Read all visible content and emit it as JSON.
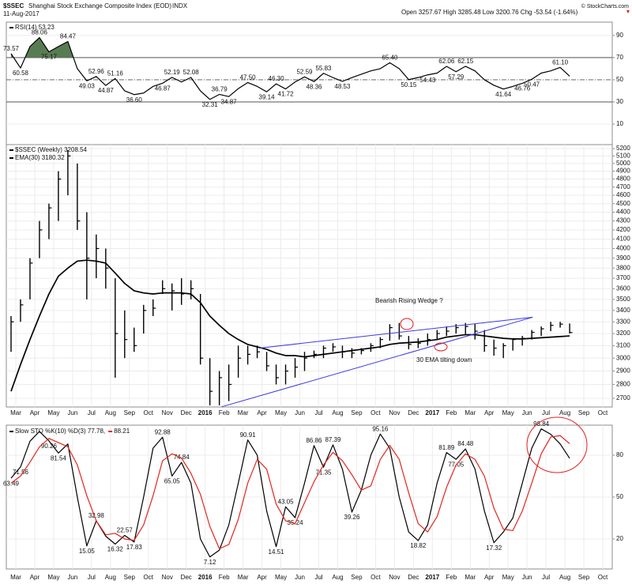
{
  "header": {
    "symbol": "$SSEC",
    "name": "Shanghai Stock Exchange Composite Index (EOD)",
    "exchange": "INDX",
    "date": "11-Aug-2017",
    "quote": "Open 3257.67  High 3285.48  Low 3200.76  Chg -53.54 (-1.64%)",
    "credit": "© StockCharts.com"
  },
  "chart_data": [
    {
      "type": "line",
      "legend": "stacked",
      "series": [
        {
          "name": "RSI(14) 53.23",
          "color": "#000000",
          "fill": "#587c52",
          "values": [
            73.57,
            60.58,
            80,
            88.06,
            75.17,
            80,
            84.47,
            60,
            49.03,
            52.96,
            44.87,
            51.16,
            40,
            36.6,
            38,
            44,
            46.87,
            52.19,
            48,
            52.08,
            40,
            32.31,
            36.79,
            34.87,
            42,
            47.5,
            44,
            39.14,
            46.3,
            41.72,
            48,
            52.59,
            48.36,
            55.83,
            52,
            48.53,
            52,
            55,
            58,
            60,
            65.4,
            60,
            50.15,
            52,
            54.43,
            56,
            62.06,
            57.29,
            62.15,
            58,
            50,
            45,
            41.64,
            44,
            46.76,
            50.47,
            56,
            58,
            61.1,
            53.23,
            null,
            null,
            null,
            null
          ],
          "value_labels": [
            "73.57",
            "60.58",
            null,
            "88.06",
            "75.17",
            null,
            "84.47",
            null,
            "49.03",
            "52.96",
            "44.87",
            "51.16",
            null,
            "36.60",
            null,
            null,
            "46.87",
            "52.19",
            null,
            "52.08",
            null,
            "32.31",
            "36.79",
            "34.87",
            null,
            "47.50",
            null,
            "39.14",
            "46.30",
            "41.72",
            null,
            "52.59",
            "48.36",
            "55.83",
            null,
            "48.53",
            null,
            null,
            null,
            null,
            "65.40",
            null,
            "50.15",
            null,
            "54.43",
            null,
            "62.06",
            "57.29",
            "62.15",
            null,
            null,
            null,
            "41.64",
            null,
            "46.76",
            "50.47",
            null,
            null,
            "61.10",
            null,
            null,
            null,
            null,
            null
          ]
        }
      ],
      "fill_above": 70,
      "ylim": [
        -8.5,
        102
      ],
      "yticks": [
        10,
        30,
        50,
        70,
        90
      ],
      "reference_lines": [
        70,
        50,
        30
      ],
      "reference_styles": [
        "solid",
        "dashdot",
        "solid"
      ]
    },
    {
      "type": "ohlc",
      "log_scale": true,
      "grid": true,
      "legend": "stacked",
      "categories": [
        "Mar",
        null,
        "Apr",
        null,
        "May",
        null,
        "Jun",
        null,
        "Jul",
        null,
        "Aug",
        null,
        "Sep",
        null,
        "Oct",
        null,
        "Nov",
        null,
        "Dec",
        null,
        "2016",
        null,
        "Feb",
        null,
        "Mar",
        null,
        "Apr",
        null,
        "May",
        null,
        "Jun",
        null,
        "Jul",
        null,
        "Aug",
        null,
        "Sep",
        null,
        "Oct",
        null,
        "Nov",
        null,
        "Dec",
        null,
        "2017",
        null,
        "Feb",
        null,
        "Mar",
        null,
        "Apr",
        null,
        "May",
        null,
        "Jun",
        null,
        "Jul",
        null,
        "Aug",
        null,
        "Sep",
        null,
        "Oct",
        null
      ],
      "series": [
        {
          "name": "$SSEC (Weekly) 3208.54",
          "color": "#000000",
          "low": [
            3050,
            3300,
            3500,
            3900,
            4100,
            4300,
            4600,
            4200,
            3500,
            3700,
            3600,
            2850,
            3000,
            3050,
            3200,
            3350,
            3550,
            3400,
            3450,
            3500,
            2950,
            2650,
            2650,
            2680,
            2850,
            2950,
            3000,
            2900,
            2800,
            2800,
            2850,
            2900,
            3000,
            3000,
            3050,
            3000,
            3000,
            3030,
            3050,
            3080,
            3140,
            3150,
            3070,
            3080,
            3100,
            3150,
            3180,
            3200,
            3190,
            3150,
            3050,
            3020,
            3000,
            3060,
            3100,
            3150,
            3180,
            3220,
            3250,
            3200.76,
            null,
            null,
            null,
            null
          ],
          "high": [
            3350,
            3500,
            3900,
            4300,
            4500,
            4900,
            5180,
            5000,
            4400,
            4150,
            4000,
            3700,
            3400,
            3250,
            3450,
            3500,
            3680,
            3650,
            3700,
            3680,
            3550,
            3000,
            2900,
            2950,
            3100,
            3100,
            3100,
            3050,
            2950,
            2950,
            3000,
            3050,
            3060,
            3100,
            3120,
            3100,
            3080,
            3080,
            3120,
            3170,
            3280,
            3290,
            3180,
            3160,
            3200,
            3230,
            3260,
            3280,
            3290,
            3280,
            3230,
            3150,
            3120,
            3160,
            3180,
            3230,
            3260,
            3300,
            3300,
            3285.48,
            null,
            null,
            null,
            null
          ],
          "close": [
            3300,
            3450,
            3850,
            4200,
            4450,
            4800,
            5100,
            4300,
            3900,
            4000,
            3800,
            3200,
            3150,
            3100,
            3400,
            3420,
            3600,
            3580,
            3550,
            3600,
            3000,
            2750,
            2850,
            2800,
            3000,
            3030,
            3050,
            2940,
            2850,
            2900,
            2930,
            3000,
            3030,
            3080,
            3090,
            3050,
            3040,
            3060,
            3100,
            3150,
            3250,
            3180,
            3110,
            3120,
            3150,
            3200,
            3220,
            3250,
            3260,
            3220,
            3100,
            3080,
            3100,
            3150,
            3160,
            3210,
            3240,
            3270,
            3280,
            3208.54,
            null,
            null,
            null,
            null
          ]
        },
        {
          "name": "EMA(30) 3180.32",
          "color": "#000000",
          "values": [
            2750,
            2950,
            3150,
            3350,
            3550,
            3720,
            3800,
            3870,
            3880,
            3870,
            3850,
            3750,
            3650,
            3580,
            3560,
            3550,
            3560,
            3560,
            3560,
            3550,
            3470,
            3350,
            3270,
            3200,
            3150,
            3110,
            3090,
            3070,
            3040,
            3020,
            3020,
            3010,
            3020,
            3030,
            3040,
            3050,
            3060,
            3070,
            3080,
            3090,
            3110,
            3120,
            3125,
            3130,
            3140,
            3150,
            3170,
            3180,
            3190,
            3190,
            3180,
            3170,
            3160,
            3155,
            3155,
            3160,
            3165,
            3170,
            3175,
            3180.32,
            null,
            null,
            null,
            null
          ]
        }
      ],
      "trendlines": [
        {
          "x": [
            "2016-02-12",
            "2017-06-25"
          ],
          "y": [
            2640,
            3340
          ],
          "color": "#3b3be0"
        },
        {
          "x": [
            "2016-04-12",
            "2017-06-25"
          ],
          "y": [
            3080,
            3340
          ],
          "color": "#3b3be0"
        }
      ],
      "annotations": [
        {
          "text": "Bearish Rising Wedge ?"
        },
        {
          "text": "30 EMA tilting down"
        }
      ],
      "ylim": [
        2639,
        5254
      ],
      "yticks": [
        2700,
        2800,
        2900,
        3000,
        3100,
        3200,
        3300,
        3400,
        3500,
        3600,
        3700,
        3800,
        3900,
        4000,
        4100,
        4200,
        4300,
        4400,
        4500,
        4600,
        4700,
        4800,
        4900,
        5000,
        5100,
        5200
      ]
    },
    {
      "type": "line",
      "legend": "inline",
      "categories": [
        "Mar",
        null,
        "Apr",
        null,
        "May",
        null,
        "Jun",
        null,
        "Jul",
        null,
        "Aug",
        null,
        "Sep",
        null,
        "Oct",
        null,
        "Nov",
        null,
        "Dec",
        null,
        "2016",
        null,
        "Feb",
        null,
        "Mar",
        null,
        "Apr",
        null,
        "May",
        null,
        "Jun",
        null,
        "Jul",
        null,
        "Aug",
        null,
        "Sep",
        null,
        "Oct",
        null,
        "Nov",
        null,
        "Dec",
        null,
        "2017",
        null,
        "Feb",
        null,
        "Mar",
        null,
        "Apr",
        null,
        "May",
        null,
        "Jun",
        null,
        "Jul",
        null,
        "Aug",
        null,
        "Sep",
        null,
        "Oct",
        null
      ],
      "series": [
        {
          "name": "Slow STO %K(10) %D(3) 77.78,",
          "color": "#000000",
          "values": [
            63.49,
            71.56,
            90,
            97,
            90.26,
            81.54,
            88,
            50,
            15.05,
            32.98,
            22,
            16.32,
            22.57,
            17.83,
            50,
            85,
            92.88,
            65.05,
            74.84,
            60,
            20,
            7.12,
            12,
            30,
            60,
            90.91,
            80,
            40,
            14.51,
            43.05,
            35.24,
            60,
            86.86,
            71.35,
            87.39,
            70,
            39.26,
            55,
            80,
            95.16,
            85,
            50,
            25,
            18.82,
            30,
            60,
            81.89,
            77.05,
            84.48,
            70,
            40,
            17.32,
            25,
            35,
            60,
            85,
            98.84,
            95,
            88,
            77.78,
            null,
            null,
            null,
            null
          ],
          "value_labels": [
            "63.49",
            "71.56",
            null,
            null,
            "90.26",
            "81.54",
            null,
            null,
            "15.05",
            "32.98",
            null,
            "16.32",
            "22.57",
            "17.83",
            null,
            null,
            "92.88",
            "65.05",
            "74.84",
            null,
            null,
            "7.12",
            null,
            null,
            null,
            "90.91",
            null,
            null,
            "14.51",
            "43.05",
            "35.24",
            null,
            "86.86",
            "71.35",
            "87.39",
            null,
            "39.26",
            null,
            null,
            "95.16",
            null,
            null,
            null,
            "18.82",
            null,
            null,
            "81.89",
            "77.05",
            "84.48",
            null,
            null,
            "17.32",
            null,
            null,
            null,
            null,
            "98.84",
            null,
            null,
            null,
            null,
            null,
            null,
            null
          ]
        },
        {
          "name": "88.21",
          "color": "#e3261c",
          "values": [
            60,
            65,
            75,
            86,
            92,
            89,
            86,
            73,
            51,
            33,
            23,
            24,
            20,
            19,
            30,
            51,
            76,
            81,
            78,
            67,
            52,
            29,
            13,
            16,
            34,
            60,
            77,
            70,
            45,
            33,
            31,
            46,
            61,
            73,
            82,
            76,
            66,
            55,
            58,
            77,
            87,
            77,
            53,
            31,
            25,
            36,
            57,
            73,
            81,
            77,
            65,
            42,
            27,
            26,
            40,
            60,
            81,
            93,
            94,
            88.21,
            null,
            null,
            null,
            null
          ]
        }
      ],
      "ylim": [
        -1.5,
        101.5
      ],
      "yticks": [
        20,
        50,
        80
      ]
    }
  ]
}
